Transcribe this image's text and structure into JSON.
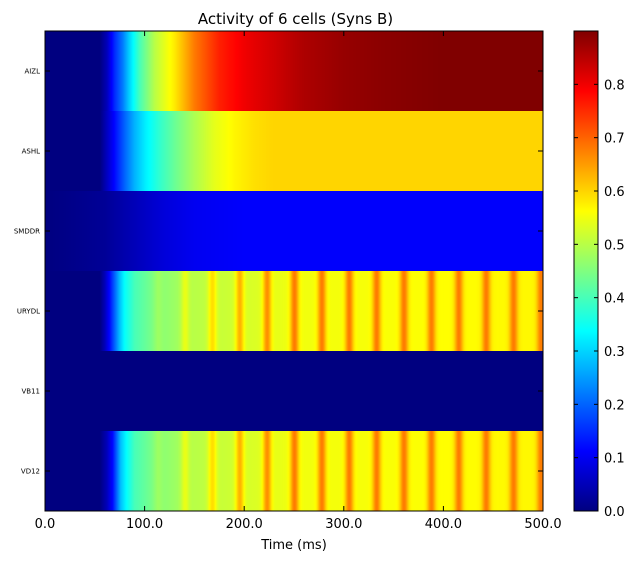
{
  "chart_data": {
    "type": "heatmap",
    "title": "Activity of 6 cells (Syns B)",
    "xlabel": "Time (ms)",
    "ylabel": "",
    "xlim": [
      0,
      500
    ],
    "x_ticks": [
      0,
      100,
      200,
      300,
      400,
      500
    ],
    "x_tick_labels": [
      "0.0",
      "100.0",
      "200.0",
      "300.0",
      "400.0",
      "500.0"
    ],
    "rows": [
      "AIZL",
      "ASHL",
      "SMDDR",
      "URYDL",
      "VB11",
      "VD12"
    ],
    "colormap": "jet",
    "color_range": [
      0.0,
      0.9
    ],
    "colorbar_ticks": [
      0.0,
      0.1,
      0.2,
      0.3,
      0.4,
      0.5,
      0.6,
      0.7,
      0.8
    ],
    "colorbar_tick_labels": [
      "0.0",
      "0.1",
      "0.2",
      "0.3",
      "0.4",
      "0.5",
      "0.6",
      "0.7",
      "0.8"
    ],
    "grid": false,
    "series": [
      {
        "name": "AIZL",
        "keyframes": [
          [
            0,
            0.0
          ],
          [
            55,
            0.0
          ],
          [
            62,
            0.05
          ],
          [
            70,
            0.15
          ],
          [
            78,
            0.22
          ],
          [
            85,
            0.3
          ],
          [
            95,
            0.4
          ],
          [
            110,
            0.5
          ],
          [
            130,
            0.58
          ],
          [
            150,
            0.68
          ],
          [
            175,
            0.76
          ],
          [
            200,
            0.8
          ],
          [
            230,
            0.83
          ],
          [
            260,
            0.86
          ],
          [
            300,
            0.88
          ],
          [
            340,
            0.89
          ],
          [
            400,
            0.9
          ],
          [
            500,
            0.9
          ]
        ],
        "pattern": "smooth"
      },
      {
        "name": "ASHL",
        "keyframes": [
          [
            0,
            0.0
          ],
          [
            55,
            0.0
          ],
          [
            60,
            0.04
          ],
          [
            70,
            0.12
          ],
          [
            80,
            0.2
          ],
          [
            90,
            0.27
          ],
          [
            100,
            0.32
          ],
          [
            115,
            0.38
          ],
          [
            130,
            0.43
          ],
          [
            150,
            0.49
          ],
          [
            170,
            0.54
          ],
          [
            190,
            0.57
          ],
          [
            210,
            0.59
          ],
          [
            230,
            0.6
          ],
          [
            500,
            0.6
          ]
        ],
        "pattern": "smooth"
      },
      {
        "name": "SMDDR",
        "keyframes": [
          [
            0,
            0.0
          ],
          [
            60,
            0.02
          ],
          [
            90,
            0.05
          ],
          [
            120,
            0.08
          ],
          [
            150,
            0.1
          ],
          [
            200,
            0.11
          ],
          [
            500,
            0.11
          ]
        ],
        "pattern": "smooth"
      },
      {
        "name": "URYDL",
        "keyframes": [
          [
            0,
            0.0
          ],
          [
            55,
            0.0
          ],
          [
            60,
            0.05
          ],
          [
            65,
            0.12
          ],
          [
            70,
            0.2
          ],
          [
            75,
            0.28
          ],
          [
            80,
            0.34
          ],
          [
            90,
            0.4
          ],
          [
            110,
            0.45
          ],
          [
            150,
            0.5
          ],
          [
            250,
            0.55
          ],
          [
            500,
            0.57
          ]
        ],
        "pattern": "periodic",
        "oscillation": {
          "period_ms": 27.5,
          "phase_ms": 3,
          "peak_value": 0.68,
          "peak_width_ms": 3,
          "start_ms": 100,
          "full_amplitude_ms": 240
        }
      },
      {
        "name": "VB11",
        "keyframes": [
          [
            0,
            0.0
          ],
          [
            500,
            0.0
          ]
        ],
        "pattern": "smooth"
      },
      {
        "name": "VD12",
        "keyframes": [
          [
            0,
            0.0
          ],
          [
            55,
            0.0
          ],
          [
            62,
            0.05
          ],
          [
            68,
            0.12
          ],
          [
            72,
            0.2
          ],
          [
            76,
            0.28
          ],
          [
            82,
            0.34
          ],
          [
            90,
            0.4
          ],
          [
            110,
            0.45
          ],
          [
            150,
            0.5
          ],
          [
            250,
            0.55
          ],
          [
            500,
            0.57
          ]
        ],
        "pattern": "periodic",
        "oscillation": {
          "period_ms": 27.5,
          "phase_ms": 3,
          "peak_value": 0.68,
          "peak_width_ms": 3,
          "start_ms": 100,
          "full_amplitude_ms": 240
        }
      }
    ]
  }
}
